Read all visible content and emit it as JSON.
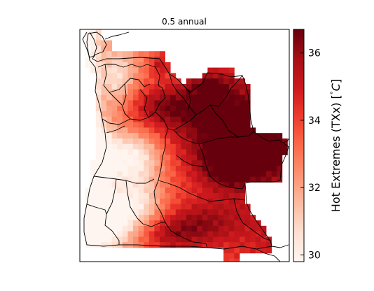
{
  "title": "0.5 annual",
  "colorbar": {
    "label": "Hot Extremes (TXx) [°C]",
    "label_main": "Hot Extremes (TXx) [",
    "label_deg": "°",
    "label_unit": "C",
    "label_close": "]",
    "min": 29.8,
    "max": 36.7,
    "ticks": [
      {
        "value": 30,
        "label": "30"
      },
      {
        "value": 32,
        "label": "32"
      },
      {
        "value": 34,
        "label": "34"
      },
      {
        "value": 36,
        "label": "36"
      }
    ],
    "colormap": "Reds",
    "colors": [
      "#fff5f0",
      "#fee0d2",
      "#fcbba1",
      "#fc9272",
      "#fb6a4a",
      "#ef3b2c",
      "#cb181d",
      "#a50f15",
      "#67000d"
    ]
  },
  "map": {
    "region": "Angola",
    "grid_resolution_deg": 0.5
  }
}
